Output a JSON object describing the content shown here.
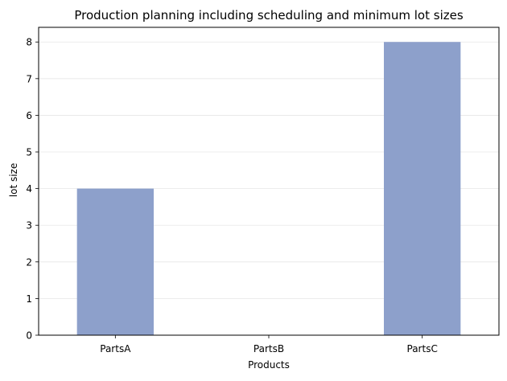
{
  "chart_data": {
    "type": "bar",
    "title": "Production planning including scheduling and minimum lot sizes",
    "xlabel": "Products",
    "ylabel": "lot size",
    "categories": [
      "PartsA",
      "PartsB",
      "PartsC"
    ],
    "values": [
      4,
      0,
      8
    ],
    "ylim": [
      0,
      8.4
    ],
    "yticks": [
      0,
      1,
      2,
      3,
      4,
      5,
      6,
      7,
      8
    ],
    "grid": true,
    "legend": "none",
    "bar_color": "#8da0cb"
  }
}
